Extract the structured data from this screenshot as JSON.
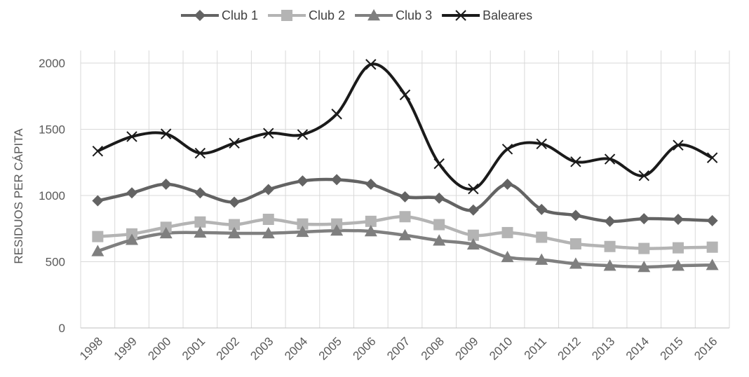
{
  "chart_data": {
    "type": "line",
    "title": "",
    "xlabel": "",
    "ylabel": "RESIDUOS PER CÁPITA",
    "ylim": [
      0,
      2000
    ],
    "yticks": [
      0,
      500,
      1000,
      1500,
      2000
    ],
    "grid": "vertical gridlines at each year and horizontal gridlines at each y tick",
    "legend_position": "top",
    "x": [
      "1998",
      "1999",
      "2000",
      "2001",
      "2002",
      "2003",
      "2004",
      "2005",
      "2006",
      "2007",
      "2008",
      "2009",
      "2010",
      "2011",
      "2012",
      "2013",
      "2014",
      "2015",
      "2016"
    ],
    "series": [
      {
        "name": "Club 1",
        "color": "#636363",
        "marker": "diamond",
        "values": [
          960,
          1020,
          1085,
          1020,
          950,
          1045,
          1110,
          1120,
          1085,
          990,
          980,
          890,
          1085,
          895,
          850,
          805,
          825,
          820,
          810
        ]
      },
      {
        "name": "Club 2",
        "color": "#b4b4b4",
        "marker": "square",
        "values": [
          690,
          710,
          760,
          800,
          780,
          820,
          785,
          785,
          805,
          840,
          780,
          700,
          720,
          685,
          635,
          615,
          600,
          605,
          610
        ]
      },
      {
        "name": "Club 3",
        "color": "#7f7f7f",
        "marker": "triangle",
        "values": [
          580,
          665,
          715,
          720,
          715,
          715,
          725,
          735,
          730,
          700,
          660,
          630,
          535,
          515,
          485,
          470,
          460,
          470,
          475
        ]
      },
      {
        "name": "Baleares",
        "color": "#1a1a1a",
        "marker": "x",
        "values": [
          1335,
          1445,
          1465,
          1320,
          1395,
          1470,
          1460,
          1615,
          1990,
          1760,
          1240,
          1050,
          1350,
          1390,
          1255,
          1275,
          1150,
          1380,
          1285
        ]
      }
    ]
  }
}
